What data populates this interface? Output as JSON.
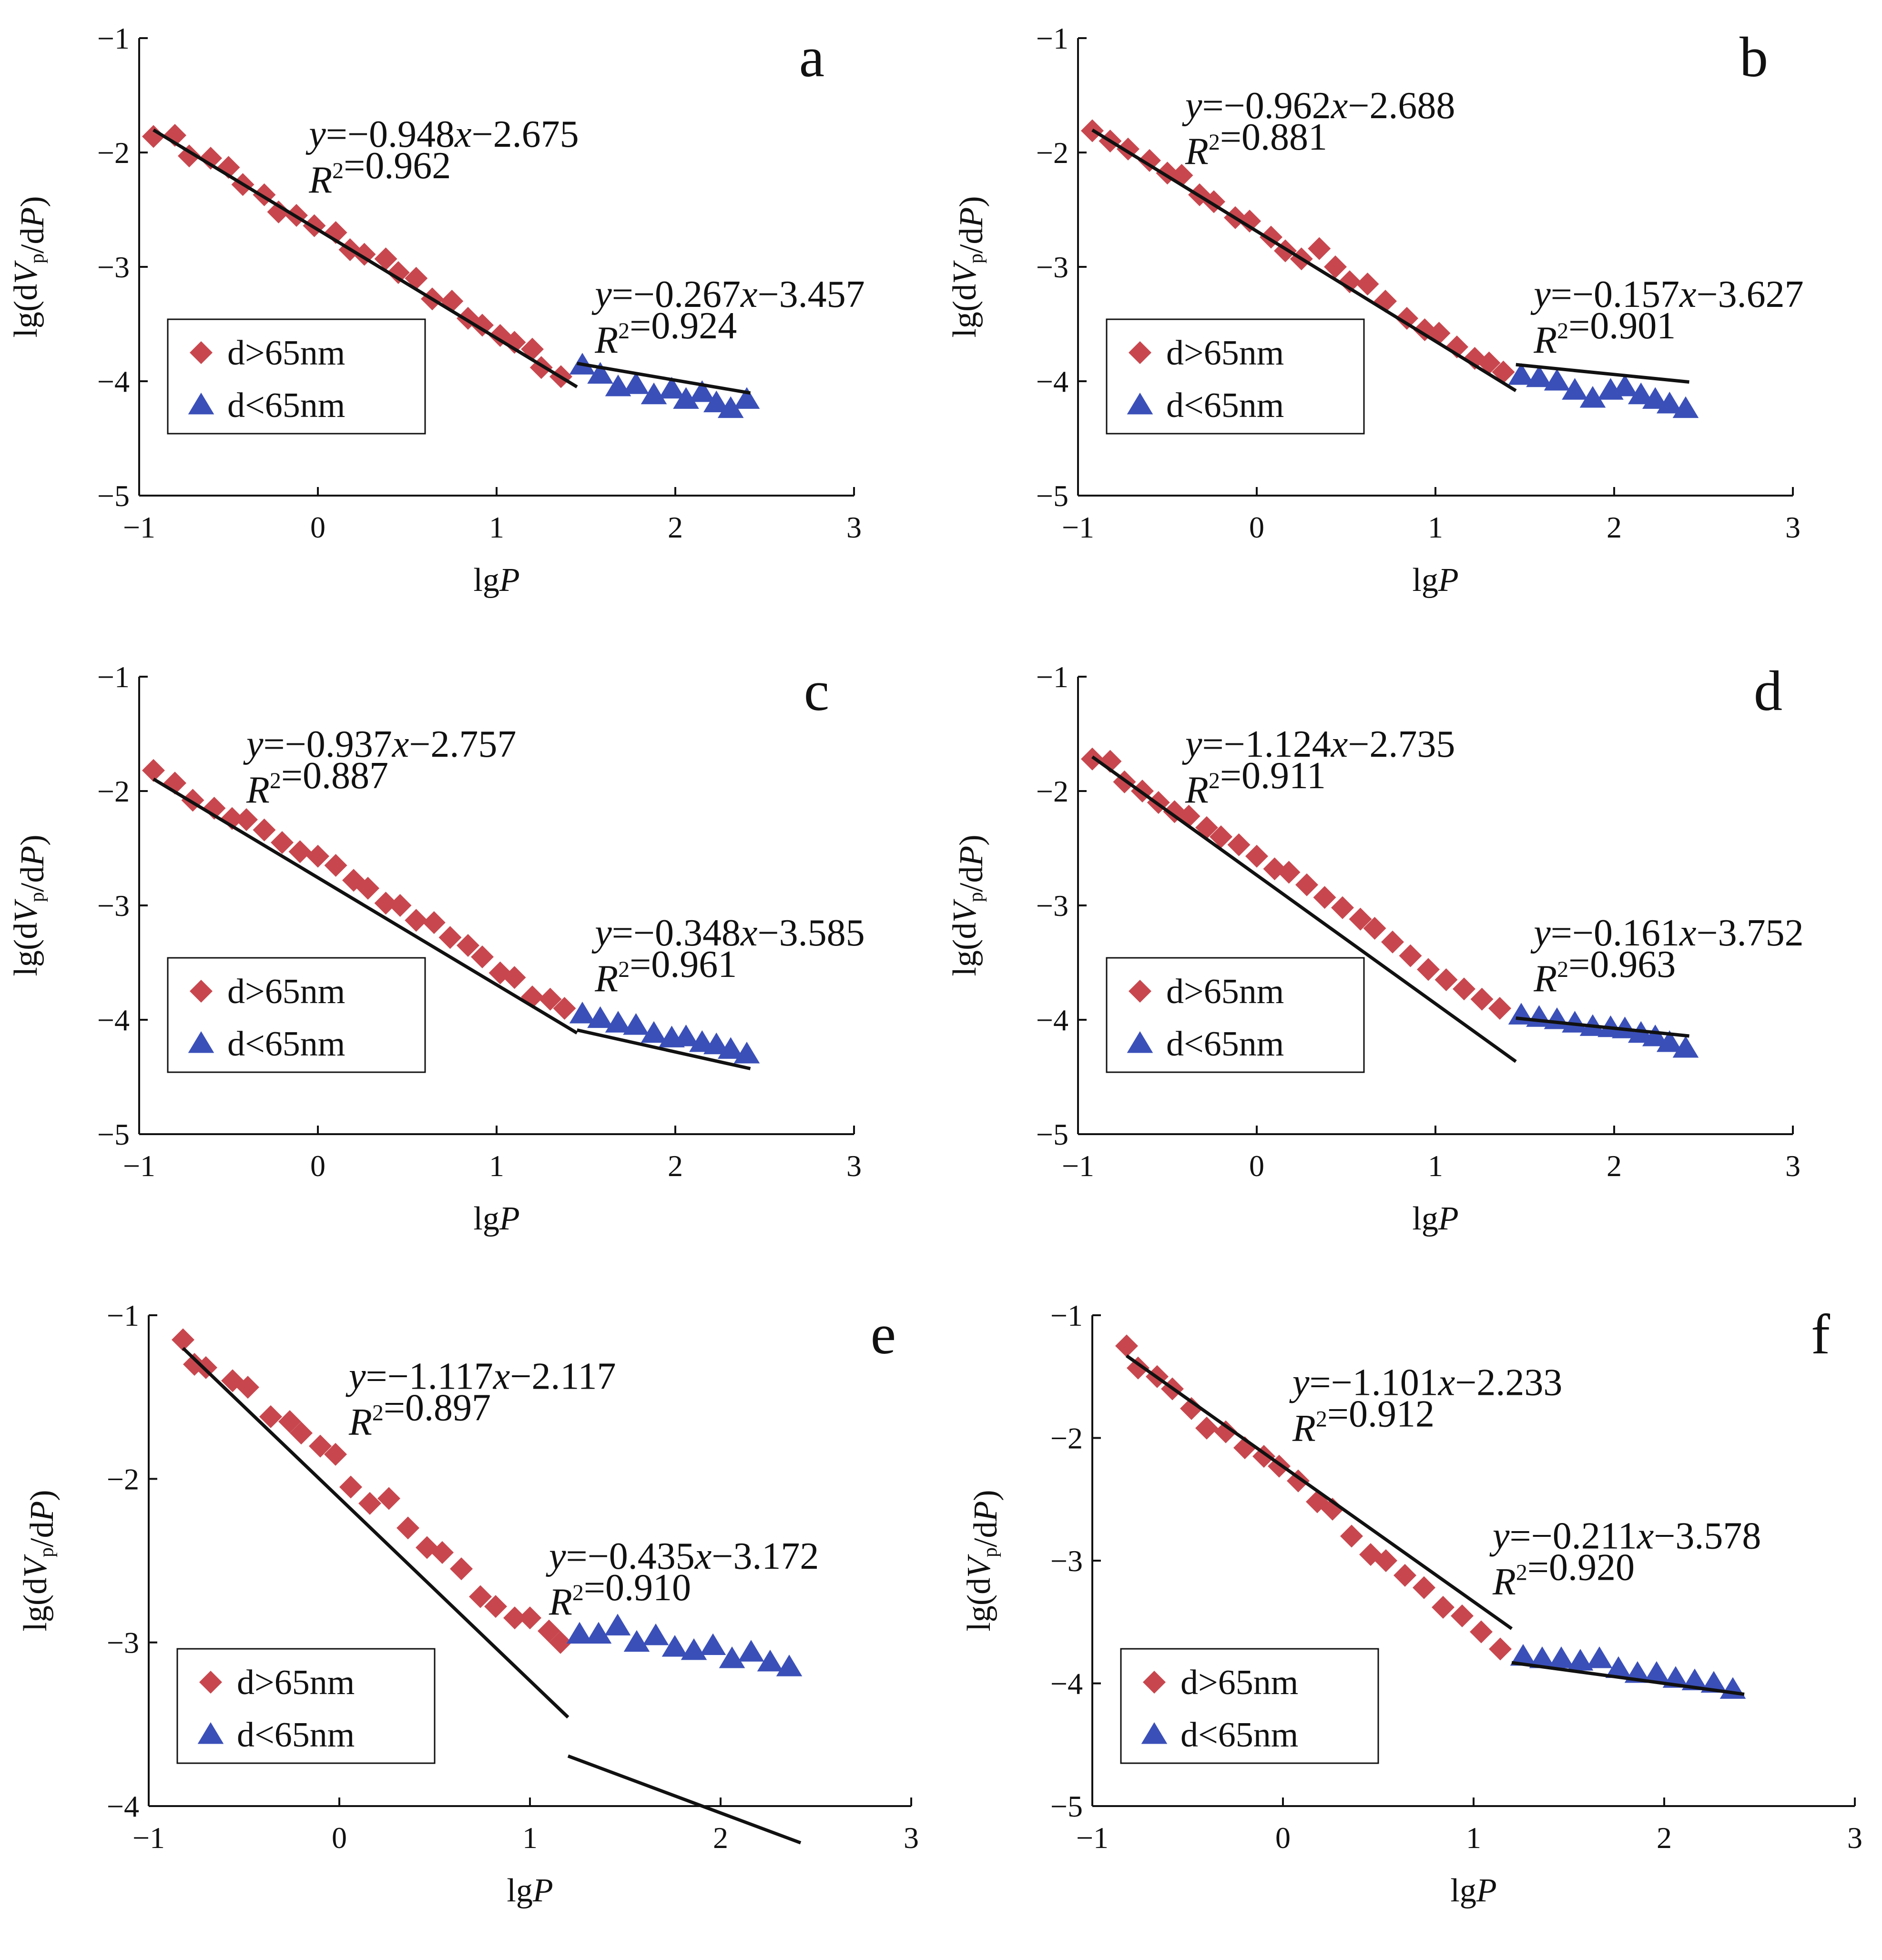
{
  "colors": {
    "red": "#c8474e",
    "blue": "#3a4fb8",
    "axis": "#111111",
    "fit": "#111111"
  },
  "chart_data": [
    {
      "id": "a",
      "panel_label": "a",
      "type": "scatter",
      "xlabel": "lgP",
      "ylabel": "lg(dVp/dP)",
      "xlim": [
        -1,
        3
      ],
      "ylim": [
        -5,
        -1
      ],
      "xticks": [
        "−1",
        "0",
        "1",
        "2",
        "3"
      ],
      "yticks": [
        "−5",
        "−4",
        "−3",
        "−2",
        "−1"
      ],
      "legend": {
        "placement": "bottom-left",
        "labels": [
          "d>65nm",
          "d<65nm"
        ]
      },
      "fits": [
        {
          "series": "d>65nm",
          "slope": -0.948,
          "intercept": -2.675,
          "x_range": [
            -0.92,
            1.45
          ],
          "equation": "y=−0.948x−2.675",
          "r2": "R²=0.962"
        },
        {
          "series": "d<65nm",
          "slope": -0.267,
          "intercept": -3.457,
          "x_range": [
            1.45,
            2.42
          ],
          "equation": "y=−0.267x−3.457",
          "r2": "R²=0.924"
        }
      ],
      "series": [
        {
          "name": "d>65nm",
          "marker": "diamond",
          "color": "red",
          "x": [
            -0.92,
            -0.8,
            -0.72,
            -0.6,
            -0.5,
            -0.42,
            -0.3,
            -0.22,
            -0.12,
            -0.02,
            0.1,
            0.18,
            0.26,
            0.38,
            0.45,
            0.55,
            0.64,
            0.75,
            0.84,
            0.92,
            1.02,
            1.1,
            1.2,
            1.25,
            1.36
          ],
          "y": [
            -1.86,
            -1.85,
            -2.03,
            -2.05,
            -2.13,
            -2.28,
            -2.37,
            -2.52,
            -2.55,
            -2.64,
            -2.7,
            -2.85,
            -2.89,
            -2.93,
            -3.05,
            -3.1,
            -3.28,
            -3.3,
            -3.45,
            -3.51,
            -3.6,
            -3.66,
            -3.72,
            -3.88,
            -3.96
          ]
        },
        {
          "name": "d<65nm",
          "marker": "triangle",
          "color": "blue",
          "x": [
            1.48,
            1.58,
            1.68,
            1.78,
            1.88,
            1.98,
            2.06,
            2.15,
            2.23,
            2.31,
            2.4
          ],
          "y": [
            -3.86,
            -3.94,
            -4.05,
            -4.03,
            -4.12,
            -4.07,
            -4.16,
            -4.1,
            -4.19,
            -4.24,
            -4.16
          ]
        }
      ]
    },
    {
      "id": "b",
      "panel_label": "b",
      "type": "scatter",
      "xlabel": "lgP",
      "ylabel": "lg(dVp/dP)",
      "xlim": [
        -1,
        3
      ],
      "ylim": [
        -5,
        -1
      ],
      "xticks": [
        "−1",
        "0",
        "1",
        "2",
        "3"
      ],
      "yticks": [
        "−5",
        "−4",
        "−3",
        "−2",
        "−1"
      ],
      "legend": {
        "placement": "bottom-left",
        "labels": [
          "d>65nm",
          "d<65nm"
        ]
      },
      "fits": [
        {
          "series": "d>65nm",
          "slope": -0.962,
          "intercept": -2.688,
          "x_range": [
            -0.92,
            1.45
          ],
          "equation": "y=−0.962x−2.688",
          "r2": "R²=0.881"
        },
        {
          "series": "d<65nm",
          "slope": -0.157,
          "intercept": -3.627,
          "x_range": [
            1.45,
            2.42
          ],
          "equation": "y=−0.157x−3.627",
          "r2": "R²=0.901"
        }
      ],
      "series": [
        {
          "name": "d>65nm",
          "marker": "diamond",
          "color": "red",
          "x": [
            -0.92,
            -0.82,
            -0.72,
            -0.6,
            -0.5,
            -0.42,
            -0.32,
            -0.24,
            -0.12,
            -0.04,
            0.08,
            0.16,
            0.25,
            0.35,
            0.44,
            0.52,
            0.62,
            0.72,
            0.84,
            0.94,
            1.02,
            1.12,
            1.22,
            1.3,
            1.38
          ],
          "y": [
            -1.81,
            -1.9,
            -1.97,
            -2.07,
            -2.18,
            -2.2,
            -2.37,
            -2.43,
            -2.57,
            -2.6,
            -2.74,
            -2.86,
            -2.93,
            -2.84,
            -3.0,
            -3.13,
            -3.15,
            -3.3,
            -3.45,
            -3.55,
            -3.58,
            -3.7,
            -3.8,
            -3.84,
            -3.92
          ]
        },
        {
          "name": "d<65nm",
          "marker": "triangle",
          "color": "blue",
          "x": [
            1.48,
            1.58,
            1.68,
            1.78,
            1.88,
            1.98,
            2.06,
            2.15,
            2.23,
            2.31,
            2.4
          ],
          "y": [
            -3.95,
            -3.97,
            -4.0,
            -4.08,
            -4.15,
            -4.08,
            -4.05,
            -4.12,
            -4.16,
            -4.2,
            -4.24
          ]
        }
      ]
    },
    {
      "id": "c",
      "panel_label": "c",
      "type": "scatter",
      "xlabel": "lgP",
      "ylabel": "lg(dVp/dP)",
      "xlim": [
        -1,
        3
      ],
      "ylim": [
        -5,
        -1
      ],
      "xticks": [
        "−1",
        "0",
        "1",
        "2",
        "3"
      ],
      "yticks": [
        "−5",
        "−4",
        "−3",
        "−2",
        "−1"
      ],
      "legend": {
        "placement": "bottom-left",
        "labels": [
          "d>65nm",
          "d<65nm"
        ]
      },
      "fits": [
        {
          "series": "d>65nm",
          "slope": -0.937,
          "intercept": -2.757,
          "x_range": [
            -0.92,
            1.45
          ],
          "equation": "y=−0.937x−2.757",
          "r2": "R²=0.887"
        },
        {
          "series": "d<65nm",
          "slope": -0.348,
          "intercept": -3.585,
          "x_range": [
            1.45,
            2.42
          ],
          "equation": "y=−0.348x−3.585",
          "r2": "R²=0.961"
        }
      ],
      "series": [
        {
          "name": "d>65nm",
          "marker": "diamond",
          "color": "red",
          "x": [
            -0.92,
            -0.8,
            -0.7,
            -0.58,
            -0.48,
            -0.4,
            -0.3,
            -0.2,
            -0.1,
            0.0,
            0.1,
            0.2,
            0.28,
            0.38,
            0.46,
            0.55,
            0.65,
            0.74,
            0.84,
            0.92,
            1.02,
            1.1,
            1.2,
            1.3,
            1.38
          ],
          "y": [
            -1.82,
            -1.93,
            -2.08,
            -2.15,
            -2.24,
            -2.25,
            -2.34,
            -2.45,
            -2.53,
            -2.57,
            -2.65,
            -2.78,
            -2.85,
            -2.98,
            -3.0,
            -3.13,
            -3.15,
            -3.28,
            -3.35,
            -3.45,
            -3.59,
            -3.63,
            -3.8,
            -3.82,
            -3.9
          ]
        },
        {
          "name": "d<65nm",
          "marker": "triangle",
          "color": "blue",
          "x": [
            1.48,
            1.58,
            1.68,
            1.78,
            1.88,
            1.98,
            2.06,
            2.15,
            2.23,
            2.31,
            2.4
          ],
          "y": [
            -3.95,
            -3.99,
            -4.03,
            -4.05,
            -4.12,
            -4.16,
            -4.15,
            -4.2,
            -4.22,
            -4.26,
            -4.3
          ]
        }
      ]
    },
    {
      "id": "d",
      "panel_label": "d",
      "type": "scatter",
      "xlabel": "lgP",
      "ylabel": "lg(dVp/dP)",
      "xlim": [
        -1,
        3
      ],
      "ylim": [
        -5,
        -1
      ],
      "xticks": [
        "−1",
        "0",
        "1",
        "2",
        "3"
      ],
      "yticks": [
        "−5",
        "−4",
        "−3",
        "−2",
        "−1"
      ],
      "legend": {
        "placement": "bottom-left",
        "labels": [
          "d>65nm",
          "d<65nm"
        ]
      },
      "fits": [
        {
          "series": "d>65nm",
          "slope": -1.124,
          "intercept": -2.735,
          "x_range": [
            -0.92,
            1.45
          ],
          "equation": "y=−1.124x−2.735",
          "r2": "R²=0.911"
        },
        {
          "series": "d<65nm",
          "slope": -0.161,
          "intercept": -3.752,
          "x_range": [
            1.45,
            2.42
          ],
          "equation": "y=−0.161x−3.752",
          "r2": "R²=0.963"
        }
      ],
      "series": [
        {
          "name": "d>65nm",
          "marker": "diamond",
          "color": "red",
          "x": [
            -0.92,
            -0.82,
            -0.74,
            -0.64,
            -0.55,
            -0.46,
            -0.38,
            -0.28,
            -0.2,
            -0.1,
            0.0,
            0.1,
            0.18,
            0.28,
            0.38,
            0.48,
            0.58,
            0.66,
            0.76,
            0.86,
            0.96,
            1.06,
            1.16,
            1.26,
            1.36
          ],
          "y": [
            -1.72,
            -1.74,
            -1.92,
            -2.0,
            -2.1,
            -2.18,
            -2.22,
            -2.32,
            -2.4,
            -2.47,
            -2.57,
            -2.68,
            -2.71,
            -2.82,
            -2.93,
            -3.02,
            -3.12,
            -3.2,
            -3.32,
            -3.44,
            -3.56,
            -3.65,
            -3.73,
            -3.82,
            -3.9
          ]
        },
        {
          "name": "d<65nm",
          "marker": "triangle",
          "color": "blue",
          "x": [
            1.48,
            1.58,
            1.68,
            1.78,
            1.88,
            1.98,
            2.06,
            2.15,
            2.23,
            2.31,
            2.4
          ],
          "y": [
            -3.96,
            -3.98,
            -4.0,
            -4.03,
            -4.06,
            -4.07,
            -4.08,
            -4.12,
            -4.15,
            -4.2,
            -4.25
          ]
        }
      ]
    },
    {
      "id": "e",
      "panel_label": "e",
      "type": "scatter",
      "xlabel": "lgP",
      "ylabel": "lg(dVp/dP)",
      "xlim": [
        -1,
        3
      ],
      "ylim": [
        -4,
        -1
      ],
      "xticks": [
        "−1",
        "0",
        "1",
        "2",
        "3"
      ],
      "yticks": [
        "−4",
        "−3",
        "−2",
        "−1"
      ],
      "legend": {
        "placement": "bottom-left",
        "labels": [
          "d>65nm",
          "d<65nm"
        ]
      },
      "fits": [
        {
          "series": "d>65nm",
          "slope": -1.117,
          "intercept": -2.117,
          "x_range": [
            -0.82,
            1.2
          ],
          "equation": "y=−1.117x−2.117",
          "r2": "R²=0.897"
        },
        {
          "series": "d<65nm",
          "slope": -0.435,
          "intercept": -3.172,
          "x_range": [
            1.2,
            2.42
          ],
          "equation": "y=−0.435x−3.172",
          "r2": "R²=0.910"
        }
      ],
      "series": [
        {
          "name": "d>65nm",
          "marker": "diamond",
          "color": "red",
          "x": [
            -0.82,
            -0.76,
            -0.7,
            -0.56,
            -0.48,
            -0.36,
            -0.26,
            -0.2,
            -0.1,
            -0.02,
            0.06,
            0.16,
            0.26,
            0.36,
            0.46,
            0.54,
            0.64,
            0.74,
            0.82,
            0.92,
            1.0,
            1.1,
            1.16
          ],
          "y": [
            -1.15,
            -1.3,
            -1.32,
            -1.4,
            -1.44,
            -1.62,
            -1.65,
            -1.72,
            -1.8,
            -1.85,
            -2.05,
            -2.15,
            -2.12,
            -2.3,
            -2.42,
            -2.45,
            -2.55,
            -2.72,
            -2.78,
            -2.85,
            -2.85,
            -2.93,
            -3.0
          ]
        },
        {
          "name": "d<65nm",
          "marker": "triangle",
          "color": "blue",
          "x": [
            1.26,
            1.36,
            1.46,
            1.56,
            1.66,
            1.76,
            1.86,
            1.96,
            2.06,
            2.16,
            2.26,
            2.36
          ],
          "y": [
            -2.95,
            -2.95,
            -2.9,
            -3.0,
            -2.96,
            -3.03,
            -3.05,
            -3.02,
            -3.1,
            -3.06,
            -3.12,
            -3.15
          ]
        }
      ]
    },
    {
      "id": "f",
      "panel_label": "f",
      "type": "scatter",
      "xlabel": "lgP",
      "ylabel": "lg(dVp/dP)",
      "xlim": [
        -1,
        3
      ],
      "ylim": [
        -5,
        -1
      ],
      "xticks": [
        "−1",
        "0",
        "1",
        "2",
        "3"
      ],
      "yticks": [
        "−5",
        "−4",
        "−3",
        "−2",
        "−1"
      ],
      "legend": {
        "placement": "bottom-left",
        "labels": [
          "d>65nm",
          "d<65nm"
        ]
      },
      "fits": [
        {
          "series": "d>65nm",
          "slope": -1.101,
          "intercept": -2.233,
          "x_range": [
            -0.82,
            1.2
          ],
          "equation": "y=−1.101x−2.233",
          "r2": "R²=0.912"
        },
        {
          "series": "d<65nm",
          "slope": -0.211,
          "intercept": -3.578,
          "x_range": [
            1.2,
            2.42
          ],
          "equation": "y=−0.211x−3.578",
          "r2": "R²=0.920"
        }
      ],
      "series": [
        {
          "name": "d>65nm",
          "marker": "diamond",
          "color": "red",
          "x": [
            -0.82,
            -0.76,
            -0.66,
            -0.58,
            -0.48,
            -0.4,
            -0.3,
            -0.2,
            -0.1,
            -0.02,
            0.08,
            0.18,
            0.26,
            0.36,
            0.46,
            0.54,
            0.64,
            0.74,
            0.84,
            0.94,
            1.04,
            1.14
          ],
          "y": [
            -1.25,
            -1.43,
            -1.5,
            -1.6,
            -1.76,
            -1.92,
            -1.95,
            -2.08,
            -2.15,
            -2.23,
            -2.35,
            -2.52,
            -2.58,
            -2.8,
            -2.95,
            -3.0,
            -3.12,
            -3.22,
            -3.38,
            -3.45,
            -3.58,
            -3.72
          ]
        },
        {
          "name": "d<65nm",
          "marker": "triangle",
          "color": "blue",
          "x": [
            1.26,
            1.36,
            1.46,
            1.56,
            1.66,
            1.76,
            1.86,
            1.96,
            2.06,
            2.16,
            2.26,
            2.36
          ],
          "y": [
            -3.78,
            -3.8,
            -3.8,
            -3.82,
            -3.8,
            -3.88,
            -3.92,
            -3.92,
            -3.96,
            -3.98,
            -4.0,
            -4.05
          ]
        }
      ]
    }
  ]
}
